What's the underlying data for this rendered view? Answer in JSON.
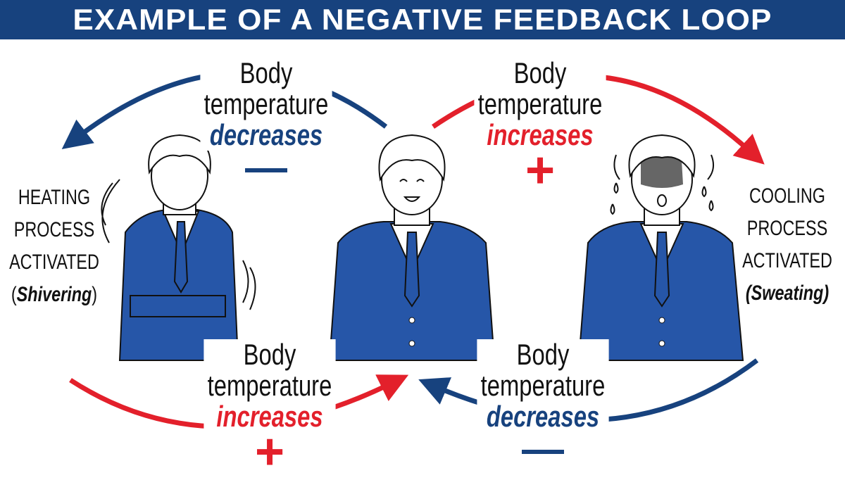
{
  "title": "EXAMPLE OF A NEGATIVE FEEDBACK LOOP",
  "colors": {
    "banner": "#17427e",
    "decrease": "#17427e",
    "increase": "#e3202b",
    "suit": "#2656a8"
  },
  "labels": {
    "top_left": {
      "line1": "Body",
      "line2": "temperature",
      "direction": "decreases",
      "sign": "—"
    },
    "top_right": {
      "line1": "Body",
      "line2": "temperature",
      "direction": "increases",
      "sign": "+"
    },
    "bottom_left": {
      "line1": "Body",
      "line2": "temperature",
      "direction": "increases",
      "sign": "+"
    },
    "bottom_right": {
      "line1": "Body",
      "line2": "temperature",
      "direction": "decreases",
      "sign": "—"
    }
  },
  "left_process": {
    "line1": "HEATING",
    "line2": "PROCESS",
    "line3": "ACTIVATED",
    "detail": "Shivering"
  },
  "right_process": {
    "line1": "COOLING",
    "line2": "PROCESS",
    "line3": "ACTIVATED",
    "detail": "Sweating"
  }
}
